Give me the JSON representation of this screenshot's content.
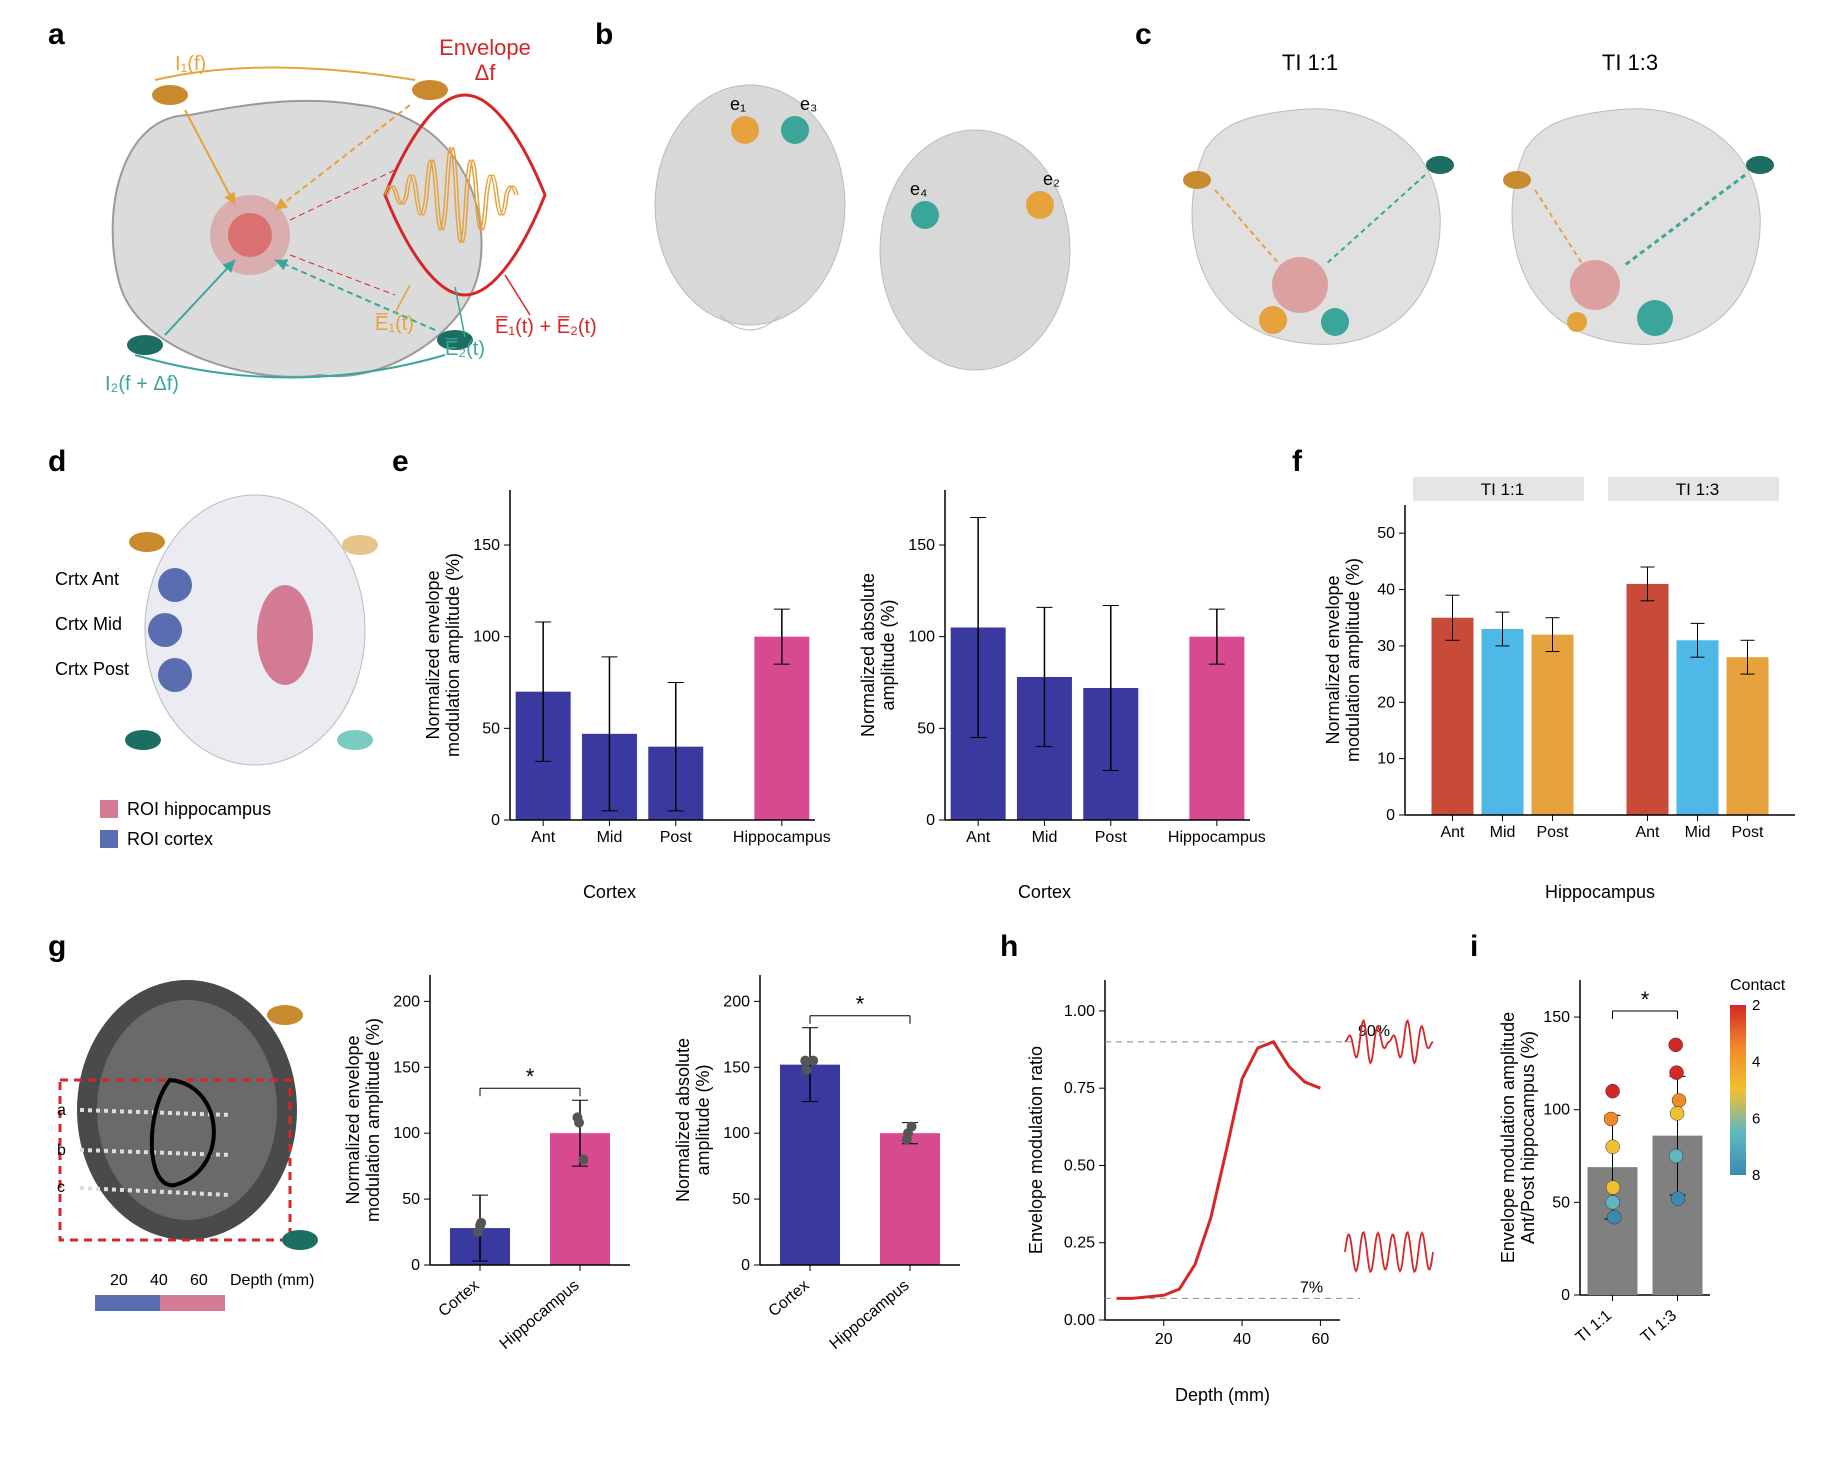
{
  "colors": {
    "orange": "#e6a23c",
    "teal": "#3aa699",
    "teal_dark": "#1c6e62",
    "red": "#d62728",
    "brain_gray": "#9a9a9a",
    "cortex_blue": "#3a39a0",
    "hippo_pink": "#d84a8f",
    "bar_red": "#c84b3a",
    "bar_cyan": "#4eb8e6",
    "bar_orange": "#e6a23c",
    "gray_bar": "#808080",
    "grid": "#bdbdbd",
    "pink_roi": "#d37a95",
    "blue_roi": "#5a6db0",
    "head_gray": "#e0e0e0",
    "black": "#000000",
    "white": "#ffffff"
  },
  "labels": {
    "a": "a",
    "b": "b",
    "c": "c",
    "d": "d",
    "e": "e",
    "f": "f",
    "g": "g",
    "h": "h",
    "i": "i"
  },
  "panelA": {
    "I1": "I₁(f)",
    "I2": "I₂(f + Δf)",
    "E1": "E̅₁(t)",
    "E2": "E̅₂(t)",
    "Esum": "E̅₁(t) + E̅₂(t)",
    "envelope": "Envelope",
    "deltaf": "Δf"
  },
  "panelB": {
    "e1": "e₁",
    "e2": "e₂",
    "e3": "e₃",
    "e4": "e₄"
  },
  "panelC": {
    "t11": "TI 1:1",
    "t13": "TI 1:3"
  },
  "panelD": {
    "crtxAnt": "Crtx Ant",
    "crtxMid": "Crtx Mid",
    "crtxPost": "Crtx Post",
    "roiH": "ROI hippocampus",
    "roiC": "ROI cortex"
  },
  "panelE": {
    "left": {
      "ylabel": "Normalized envelope\nmodulation amplitude (%)",
      "categories": [
        "Ant",
        "Mid",
        "Post",
        "Hippocampus"
      ],
      "values": [
        70,
        47,
        40,
        100
      ],
      "err": [
        38,
        42,
        35,
        15
      ],
      "colors": [
        "#3a39a0",
        "#3a39a0",
        "#3a39a0",
        "#d84a8f"
      ],
      "ylim": [
        0,
        180
      ],
      "yticks": [
        0,
        50,
        100,
        150
      ],
      "xlabel": "Cortex"
    },
    "right": {
      "ylabel": "Normalized absolute\namplitude (%)",
      "categories": [
        "Ant",
        "Mid",
        "Post",
        "Hippocampus"
      ],
      "values": [
        105,
        78,
        72,
        100
      ],
      "err": [
        60,
        38,
        45,
        15
      ],
      "colors": [
        "#3a39a0",
        "#3a39a0",
        "#3a39a0",
        "#d84a8f"
      ],
      "ylim": [
        0,
        180
      ],
      "yticks": [
        0,
        50,
        100,
        150
      ],
      "xlabel": "Cortex"
    }
  },
  "panelF": {
    "ylabel": "Normalized envelope\nmodulation amplitude (%)",
    "groups": [
      "TI 1:1",
      "TI 1:3"
    ],
    "categories": [
      "Ant",
      "Mid",
      "Post"
    ],
    "values": [
      [
        35,
        33,
        32
      ],
      [
        41,
        31,
        28
      ]
    ],
    "err": [
      [
        4,
        3,
        3
      ],
      [
        3,
        3,
        3
      ]
    ],
    "colors": [
      "#c84b3a",
      "#4eb8e6",
      "#e6a23c"
    ],
    "ylim": [
      0,
      55
    ],
    "yticks": [
      0,
      10,
      20,
      30,
      40,
      50
    ],
    "xlabel": "Hippocampus"
  },
  "panelG": {
    "depthLabel": "Depth (mm)",
    "depthTicks": [
      "20",
      "40",
      "60"
    ],
    "markers": [
      "a",
      "b",
      "c"
    ],
    "left": {
      "ylabel": "Normalized envelope\nmodulation amplitude (%)",
      "categories": [
        "Cortex",
        "Hippocampus"
      ],
      "values": [
        28,
        100
      ],
      "err": [
        25,
        25
      ],
      "points": [
        [
          25,
          32,
          30
        ],
        [
          80,
          108,
          112
        ]
      ],
      "colors": [
        "#3a39a0",
        "#d84a8f"
      ],
      "ylim": [
        0,
        220
      ],
      "yticks": [
        0,
        50,
        100,
        150,
        200
      ],
      "sig": "*"
    },
    "right": {
      "ylabel": "Normalized absolute\namplitude (%)",
      "categories": [
        "Cortex",
        "Hippocampus"
      ],
      "values": [
        152,
        100
      ],
      "err": [
        28,
        8
      ],
      "points": [
        [
          148,
          155,
          155
        ],
        [
          95,
          100,
          105
        ]
      ],
      "colors": [
        "#3a39a0",
        "#d84a8f"
      ],
      "ylim": [
        0,
        220
      ],
      "yticks": [
        0,
        50,
        100,
        150,
        200
      ],
      "sig": "*"
    }
  },
  "panelH": {
    "ylabel": "Envelope modulation ratio",
    "xlabel": "Depth (mm)",
    "xlim": [
      5,
      65
    ],
    "xticks": [
      20,
      40,
      60
    ],
    "ylim": [
      0,
      1.1
    ],
    "yticks": [
      0,
      0.25,
      0.5,
      0.75,
      1.0
    ],
    "ann90": "90%",
    "ann7": "7%",
    "color": "#d62728",
    "line": [
      [
        8,
        0.07
      ],
      [
        12,
        0.07
      ],
      [
        16,
        0.075
      ],
      [
        20,
        0.08
      ],
      [
        24,
        0.1
      ],
      [
        28,
        0.18
      ],
      [
        32,
        0.33
      ],
      [
        36,
        0.55
      ],
      [
        40,
        0.78
      ],
      [
        44,
        0.88
      ],
      [
        48,
        0.9
      ],
      [
        52,
        0.82
      ],
      [
        56,
        0.77
      ],
      [
        60,
        0.75
      ]
    ]
  },
  "panelI": {
    "ylabel": "Envelope modulation amplitude\nAnt/Post hippocampus (%)",
    "categories": [
      "TI 1:1",
      "TI 1:3"
    ],
    "values": [
      69,
      86
    ],
    "err": [
      28,
      32
    ],
    "colors": [
      "#808080",
      "#808080"
    ],
    "ylim": [
      0,
      170
    ],
    "yticks": [
      0,
      50,
      100,
      150
    ],
    "sig": "*",
    "legend": "Contact",
    "colormap": [
      "#d62728",
      "#f08a28",
      "#f0c030",
      "#5fb8c0",
      "#3a8bb0"
    ],
    "colormap_ticks": [
      "2",
      "4",
      "6",
      "8"
    ],
    "points_11": [
      {
        "y": 110,
        "c": "#d62728"
      },
      {
        "y": 95,
        "c": "#f08a28"
      },
      {
        "y": 80,
        "c": "#f0c030"
      },
      {
        "y": 58,
        "c": "#f0c030"
      },
      {
        "y": 50,
        "c": "#5fb8c0"
      },
      {
        "y": 42,
        "c": "#3a8bb0"
      }
    ],
    "points_13": [
      {
        "y": 135,
        "c": "#d62728"
      },
      {
        "y": 120,
        "c": "#d62728"
      },
      {
        "y": 105,
        "c": "#f08a28"
      },
      {
        "y": 98,
        "c": "#f0c030"
      },
      {
        "y": 75,
        "c": "#5fb8c0"
      },
      {
        "y": 52,
        "c": "#3a8bb0"
      }
    ]
  }
}
